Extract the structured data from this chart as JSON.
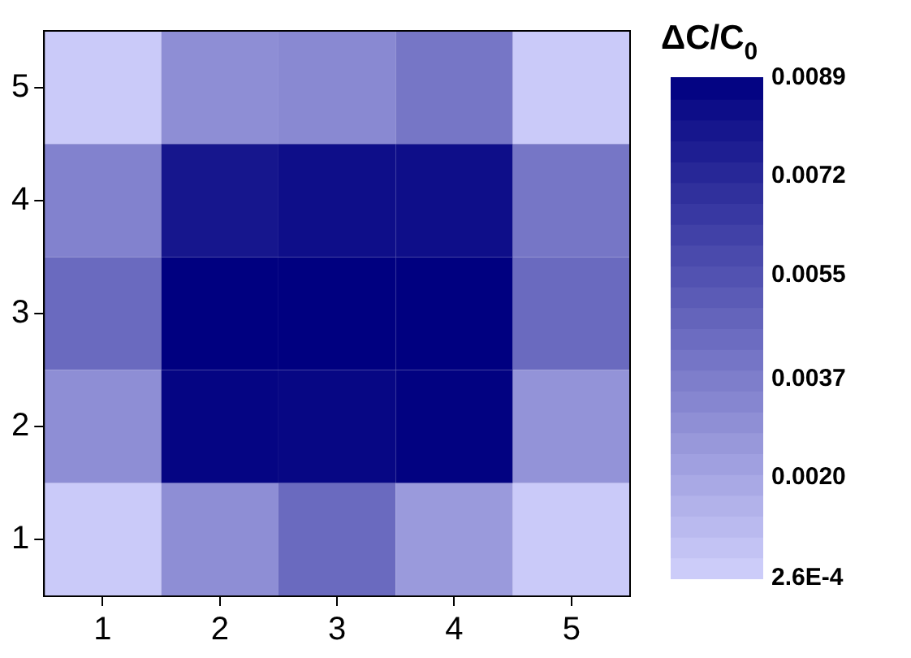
{
  "chart_data": {
    "type": "heatmap",
    "clabel": "ΔC/C$_{0}$",
    "categories": [
      "1",
      "2",
      "3",
      "4",
      "5"
    ],
    "y_categories": [
      "5",
      "4",
      "3",
      "2",
      "1"
    ],
    "cells": [
      [
        0.0005,
        0.003,
        0.0032,
        0.004,
        0.0005
      ],
      [
        0.0035,
        0.008,
        0.0083,
        0.0083,
        0.004
      ],
      [
        0.0045,
        0.0089,
        0.0089,
        0.0089,
        0.0045
      ],
      [
        0.003,
        0.0087,
        0.0086,
        0.0088,
        0.0028
      ],
      [
        0.0005,
        0.003,
        0.0045,
        0.0025,
        0.0005
      ]
    ],
    "clim": [
      0.00026,
      0.0089
    ],
    "cticks": [
      {
        "value": 0.00026,
        "label": "2.6E-4"
      },
      {
        "value": 0.002,
        "label": "0.0020"
      },
      {
        "value": 0.0037,
        "label": "0.0037"
      },
      {
        "value": 0.0055,
        "label": "0.0055"
      },
      {
        "value": 0.0072,
        "label": "0.0072"
      },
      {
        "value": 0.0089,
        "label": "0.0089"
      }
    ]
  }
}
